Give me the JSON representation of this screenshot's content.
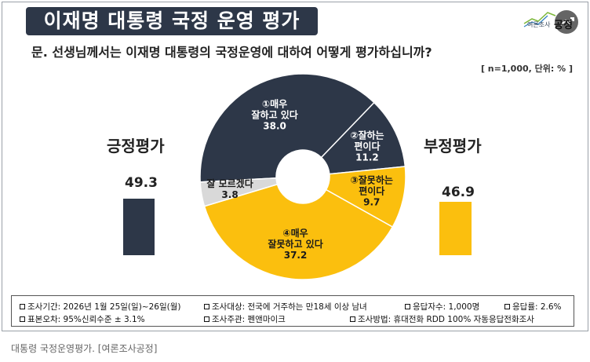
{
  "header": {
    "title": "이재명 대통령 국정 운영 평가",
    "question": "문. 선생님께서는 이재명 대통령의 국정운영에 대하여 어떻게 평가하십니까?",
    "unit_note": "[ n=1,000, 단위: % ]",
    "logo_small": "여론조사",
    "logo_bold": "공정"
  },
  "chart_data": {
    "type": "pie",
    "title": "이재명 대통령 국정 운영 평가",
    "slices": [
      {
        "name": "①매우 잘하고 있다",
        "line1": "①매우",
        "line2": "잘하고 있다",
        "value": 38.0,
        "value_label": "38.0",
        "color": "#2d3748"
      },
      {
        "name": "②잘하는 편이다",
        "line1": "②잘하는",
        "line2": "편이다",
        "value": 11.2,
        "value_label": "11.2",
        "color": "#2d3748"
      },
      {
        "name": "③잘못하는 편이다",
        "line1": "③잘못하는",
        "line2": "편이다",
        "value": 9.7,
        "value_label": "9.7",
        "color": "#fbbf0e"
      },
      {
        "name": "④매우 잘못하고 있다",
        "line1": "④매우",
        "line2": "잘못하고 있다",
        "value": 37.2,
        "value_label": "37.2",
        "color": "#fbbf0e"
      },
      {
        "name": "잘 모르겠다",
        "line1": "잘 모르겠다",
        "line2": "",
        "value": 3.8,
        "value_label": "3.8",
        "color": "#d9d9d9"
      }
    ],
    "summary": {
      "positive": {
        "label": "긍정평가",
        "value": 49.3,
        "value_label": "49.3",
        "color": "#2d3748"
      },
      "negative": {
        "label": "부정평가",
        "value": 46.9,
        "value_label": "46.9",
        "color": "#fbbf0e"
      }
    }
  },
  "footnotes": {
    "period": "조사기간: 2026년 1월 25일(일)~26일(월)",
    "target": "조사대상: 전국에 거주하는 만18세 이상 남녀",
    "respondents": "응답자수: 1,000명",
    "response_rate": "응답률: 2.6%",
    "error": "표본오차: 95%신뢰수준 ± 3.1%",
    "host": "조사주관: 펜앤마이크",
    "method": "조사방법: 휴대전화 RDD 100% 자동응답전화조사"
  },
  "caption": "대통령 국정운영평가. [여론조사공정]"
}
